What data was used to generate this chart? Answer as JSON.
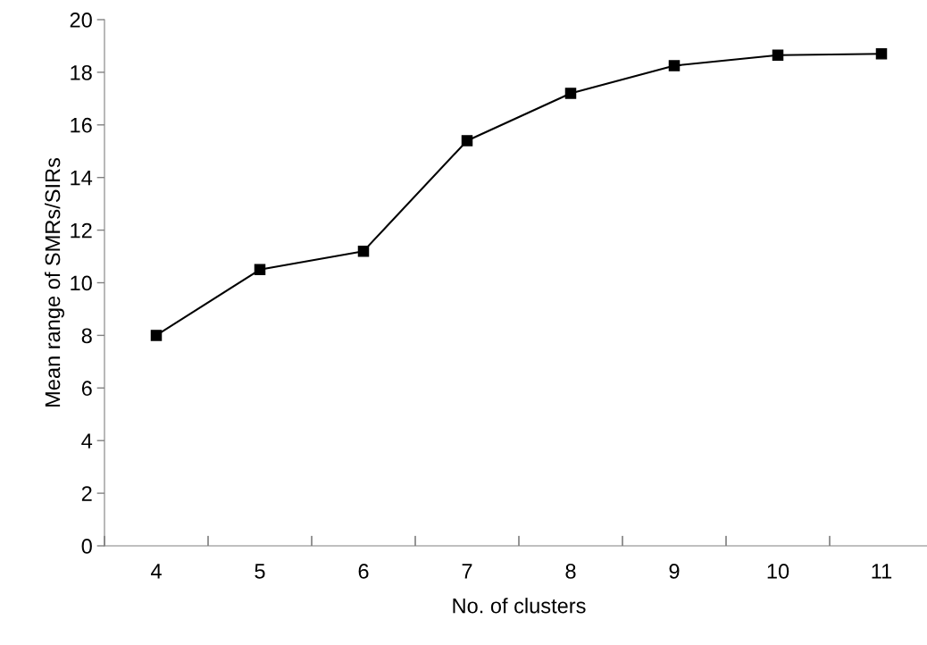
{
  "chart_data": {
    "type": "line",
    "xlabel": "No. of clusters",
    "ylabel": "Mean range of SMRs/SIRs",
    "categories": [
      "4",
      "5",
      "6",
      "7",
      "8",
      "9",
      "10",
      "11"
    ],
    "series": [
      {
        "color": "#000000",
        "values": [
          8.0,
          10.5,
          11.2,
          15.4,
          17.2,
          18.25,
          18.65,
          18.7
        ]
      }
    ],
    "ylim": [
      0,
      20
    ],
    "yticks": [
      0,
      2,
      4,
      6,
      8,
      10,
      12,
      14,
      16,
      18,
      20
    ],
    "grid": false,
    "legend": false,
    "marker": "square",
    "line_style": "solid"
  }
}
